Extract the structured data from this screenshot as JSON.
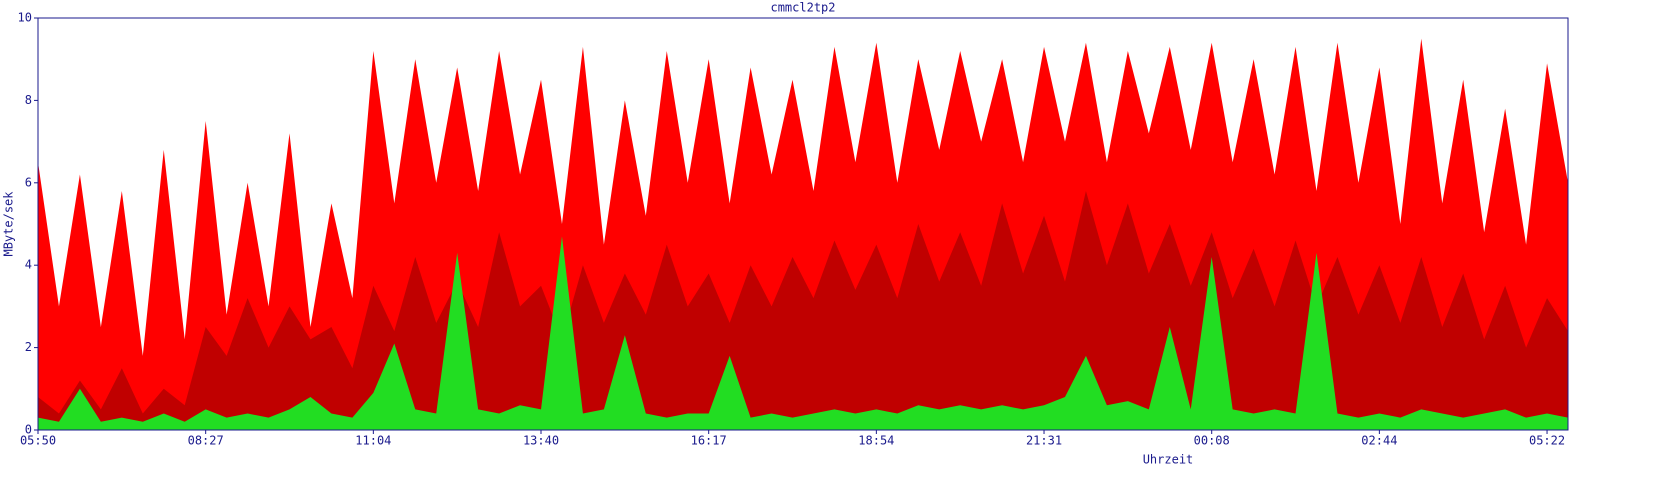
{
  "chart_data": {
    "type": "area",
    "title": "cmmcl2tp2",
    "ylabel": "MByte/sek",
    "xlabel": "Uhrzeit",
    "categories": [
      "05:50",
      null,
      null,
      null,
      null,
      null,
      null,
      null,
      "08:27",
      null,
      null,
      null,
      null,
      null,
      null,
      null,
      "11:04",
      null,
      null,
      null,
      null,
      null,
      null,
      null,
      "13:40",
      null,
      null,
      null,
      null,
      null,
      null,
      null,
      "16:17",
      null,
      null,
      null,
      null,
      null,
      null,
      null,
      "18:54",
      null,
      null,
      null,
      null,
      null,
      null,
      null,
      "21:31",
      null,
      null,
      null,
      null,
      null,
      null,
      null,
      "00:08",
      null,
      null,
      null,
      null,
      null,
      null,
      null,
      "02:44",
      null,
      null,
      null,
      null,
      null,
      null,
      null,
      "05:22",
      null
    ],
    "ylim": [
      0,
      10
    ],
    "yticks": [
      0,
      2,
      4,
      6,
      8,
      10
    ],
    "series": [
      {
        "color": "#ff0000",
        "values": [
          6.5,
          3.0,
          6.2,
          2.5,
          5.8,
          1.8,
          6.8,
          2.2,
          7.5,
          2.8,
          6.0,
          3.0,
          7.2,
          2.5,
          5.5,
          3.2,
          9.2,
          5.5,
          9.0,
          6.0,
          8.8,
          5.8,
          9.2,
          6.2,
          8.5,
          5.0,
          9.3,
          4.5,
          8.0,
          5.2,
          9.2,
          6.0,
          9.0,
          5.5,
          8.8,
          6.2,
          8.5,
          5.8,
          9.3,
          6.5,
          9.4,
          6.0,
          9.0,
          6.8,
          9.2,
          7.0,
          9.0,
          6.5,
          9.3,
          7.0,
          9.4,
          6.5,
          9.2,
          7.2,
          9.3,
          6.8,
          9.4,
          6.5,
          9.0,
          6.2,
          9.3,
          5.8,
          9.4,
          6.0,
          8.8,
          5.0,
          9.5,
          5.5,
          8.5,
          4.8,
          7.8,
          4.5,
          8.9,
          6.0
        ]
      },
      {
        "color": "#c00000",
        "values": [
          0.8,
          0.4,
          1.2,
          0.5,
          1.5,
          0.4,
          1.0,
          0.6,
          2.5,
          1.8,
          3.2,
          2.0,
          3.0,
          2.2,
          2.5,
          1.5,
          3.5,
          2.4,
          4.2,
          2.6,
          3.6,
          2.5,
          4.8,
          3.0,
          3.5,
          2.2,
          4.0,
          2.6,
          3.8,
          2.8,
          4.5,
          3.0,
          3.8,
          2.6,
          4.0,
          3.0,
          4.2,
          3.2,
          4.6,
          3.4,
          4.5,
          3.2,
          5.0,
          3.6,
          4.8,
          3.5,
          5.5,
          3.8,
          5.2,
          3.6,
          5.8,
          4.0,
          5.5,
          3.8,
          5.0,
          3.5,
          4.8,
          3.2,
          4.4,
          3.0,
          4.6,
          3.0,
          4.2,
          2.8,
          4.0,
          2.6,
          4.2,
          2.5,
          3.8,
          2.2,
          3.5,
          2.0,
          3.2,
          2.4
        ]
      },
      {
        "color": "#22dd22",
        "values": [
          0.3,
          0.2,
          1.0,
          0.2,
          0.3,
          0.2,
          0.4,
          0.2,
          0.5,
          0.3,
          0.4,
          0.3,
          0.5,
          0.8,
          0.4,
          0.3,
          0.9,
          2.1,
          0.5,
          0.4,
          4.3,
          0.5,
          0.4,
          0.6,
          0.5,
          4.7,
          0.4,
          0.5,
          2.3,
          0.4,
          0.3,
          0.4,
          0.4,
          1.8,
          0.3,
          0.4,
          0.3,
          0.4,
          0.5,
          0.4,
          0.5,
          0.4,
          0.6,
          0.5,
          0.6,
          0.5,
          0.6,
          0.5,
          0.6,
          0.8,
          1.8,
          0.6,
          0.7,
          0.5,
          2.5,
          0.5,
          4.2,
          0.5,
          0.4,
          0.5,
          0.4,
          4.3,
          0.4,
          0.3,
          0.4,
          0.3,
          0.5,
          0.4,
          0.3,
          0.4,
          0.5,
          0.3,
          0.4,
          0.3
        ]
      }
    ]
  }
}
